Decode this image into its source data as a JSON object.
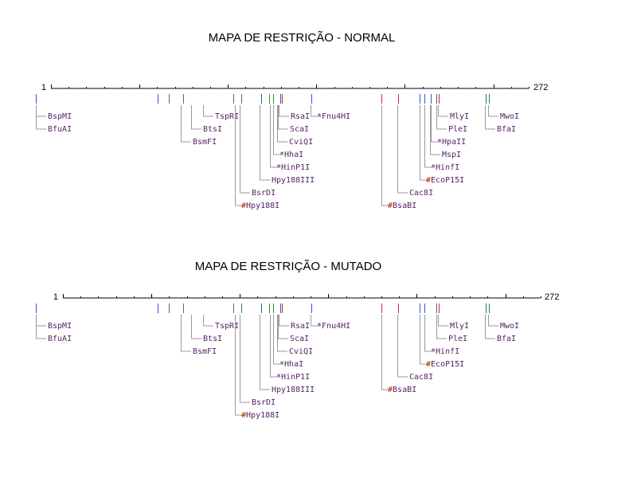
{
  "colors": {
    "site_blue": "#3355cc",
    "site_green": "#338833",
    "site_red": "#dd2222",
    "label_purple": "#552266",
    "mark_red": "#cc3300",
    "leader_gray": "#999999",
    "axis": "#000000"
  },
  "maps": [
    {
      "id": "normal",
      "title": "MAPA DE RESTRIÇÃO - NORMAL",
      "start_label": "1",
      "end_label": "272",
      "sequence_length": 272,
      "sites": [
        {
          "pos": 45,
          "color": "blue"
        },
        {
          "pos": 198,
          "color": "blue"
        },
        {
          "pos": 212,
          "color": "green"
        },
        {
          "pos": 230,
          "color": "green"
        },
        {
          "pos": 293,
          "color": "green"
        },
        {
          "pos": 303,
          "color": "green"
        },
        {
          "pos": 328,
          "color": "blue"
        },
        {
          "pos": 338,
          "color": "green"
        },
        {
          "pos": 343,
          "color": "green"
        },
        {
          "pos": 352,
          "color": "blue"
        },
        {
          "pos": 354,
          "color": "red"
        },
        {
          "pos": 391,
          "color": "blue"
        },
        {
          "pos": 479,
          "color": "red"
        },
        {
          "pos": 500,
          "color": "red"
        },
        {
          "pos": 527,
          "color": "blue"
        },
        {
          "pos": 533,
          "color": "blue"
        },
        {
          "pos": 541,
          "color": "blue"
        },
        {
          "pos": 548,
          "color": "blue"
        },
        {
          "pos": 551,
          "color": "red"
        },
        {
          "pos": 610,
          "color": "blue"
        },
        {
          "pos": 614,
          "color": "green"
        }
      ],
      "labels": [
        {
          "text": "BspMI",
          "prefix": "",
          "row": 0,
          "site": 45
        },
        {
          "text": "BfuAI",
          "prefix": "",
          "row": 1,
          "site": 45
        },
        {
          "text": "TspRI",
          "prefix": "",
          "row": 0,
          "site": 255
        },
        {
          "text": "BtsI",
          "prefix": "",
          "row": 1,
          "site": 240
        },
        {
          "text": "BsmFI",
          "prefix": "",
          "row": 2,
          "site": 227
        },
        {
          "text": "RsaI",
          "prefix": "",
          "row": 0,
          "site": 350
        },
        {
          "text": "ScaI",
          "prefix": "",
          "row": 1,
          "site": 349
        },
        {
          "text": "CviQI",
          "prefix": "",
          "row": 2,
          "site": 348
        },
        {
          "text": "HhaI",
          "prefix": "*",
          "row": 3,
          "site": 343
        },
        {
          "text": "HinP1I",
          "prefix": "*",
          "row": 4,
          "site": 339
        },
        {
          "text": "Hpy188III",
          "prefix": "",
          "row": 5,
          "site": 326
        },
        {
          "text": "BsrDI",
          "prefix": "",
          "row": 6,
          "site": 301
        },
        {
          "text": "Hpy188I",
          "prefix": "#",
          "row": 7,
          "site": 295
        },
        {
          "text": "Fnu4HI",
          "prefix": "*",
          "row": 0,
          "site": 390
        },
        {
          "text": "Cac8I",
          "prefix": "",
          "row": 6,
          "site": 499
        },
        {
          "text": "BsaBI",
          "prefix": "#",
          "row": 7,
          "site": 479
        },
        {
          "text": "MlyI",
          "prefix": "",
          "row": 0,
          "site": 550
        },
        {
          "text": "PleI",
          "prefix": "",
          "row": 1,
          "site": 548
        },
        {
          "text": "HpaII",
          "prefix": "*",
          "row": 2,
          "site": 541
        },
        {
          "text": "MspI",
          "prefix": "",
          "row": 3,
          "site": 540
        },
        {
          "text": "HinfI",
          "prefix": "*",
          "row": 4,
          "site": 533
        },
        {
          "text": "EcoP15I",
          "prefix": "#",
          "row": 5,
          "site": 527
        },
        {
          "text": "MwoI",
          "prefix": "",
          "row": 0,
          "site": 613
        },
        {
          "text": "BfaI",
          "prefix": "",
          "row": 1,
          "site": 609
        }
      ]
    },
    {
      "id": "mutado",
      "title": "MAPA DE RESTRIÇÃO - MUTADO",
      "start_label": "1",
      "end_label": "272",
      "sequence_length": 272,
      "sites": [
        {
          "pos": 45,
          "color": "blue"
        },
        {
          "pos": 198,
          "color": "blue"
        },
        {
          "pos": 212,
          "color": "green"
        },
        {
          "pos": 230,
          "color": "green"
        },
        {
          "pos": 293,
          "color": "green"
        },
        {
          "pos": 303,
          "color": "green"
        },
        {
          "pos": 328,
          "color": "blue"
        },
        {
          "pos": 338,
          "color": "green"
        },
        {
          "pos": 343,
          "color": "green"
        },
        {
          "pos": 352,
          "color": "blue"
        },
        {
          "pos": 354,
          "color": "red"
        },
        {
          "pos": 391,
          "color": "blue"
        },
        {
          "pos": 479,
          "color": "red"
        },
        {
          "pos": 500,
          "color": "red"
        },
        {
          "pos": 527,
          "color": "blue"
        },
        {
          "pos": 533,
          "color": "blue"
        },
        {
          "pos": 548,
          "color": "blue"
        },
        {
          "pos": 551,
          "color": "red"
        },
        {
          "pos": 610,
          "color": "blue"
        },
        {
          "pos": 614,
          "color": "green"
        }
      ],
      "labels": [
        {
          "text": "BspMI",
          "prefix": "",
          "row": 0,
          "site": 45
        },
        {
          "text": "BfuAI",
          "prefix": "",
          "row": 1,
          "site": 45
        },
        {
          "text": "TspRI",
          "prefix": "",
          "row": 0,
          "site": 255
        },
        {
          "text": "BtsI",
          "prefix": "",
          "row": 1,
          "site": 240
        },
        {
          "text": "BsmFI",
          "prefix": "",
          "row": 2,
          "site": 227
        },
        {
          "text": "RsaI",
          "prefix": "",
          "row": 0,
          "site": 350
        },
        {
          "text": "ScaI",
          "prefix": "",
          "row": 1,
          "site": 349
        },
        {
          "text": "CviQI",
          "prefix": "",
          "row": 2,
          "site": 348
        },
        {
          "text": "HhaI",
          "prefix": "*",
          "row": 3,
          "site": 343
        },
        {
          "text": "HinP1I",
          "prefix": "*",
          "row": 4,
          "site": 339
        },
        {
          "text": "Hpy188III",
          "prefix": "",
          "row": 5,
          "site": 326
        },
        {
          "text": "BsrDI",
          "prefix": "",
          "row": 6,
          "site": 301
        },
        {
          "text": "Hpy188I",
          "prefix": "#",
          "row": 7,
          "site": 295
        },
        {
          "text": "Fnu4HI",
          "prefix": "*",
          "row": 0,
          "site": 390
        },
        {
          "text": "Cac8I",
          "prefix": "",
          "row": 4,
          "site": 499
        },
        {
          "text": "BsaBI",
          "prefix": "#",
          "row": 5,
          "site": 479
        },
        {
          "text": "MlyI",
          "prefix": "",
          "row": 0,
          "site": 550
        },
        {
          "text": "PleI",
          "prefix": "",
          "row": 1,
          "site": 548
        },
        {
          "text": "HinfI",
          "prefix": "*",
          "row": 2,
          "site": 533
        },
        {
          "text": "EcoP15I",
          "prefix": "#",
          "row": 3,
          "site": 527
        },
        {
          "text": "MwoI",
          "prefix": "",
          "row": 0,
          "site": 613
        },
        {
          "text": "BfaI",
          "prefix": "",
          "row": 1,
          "site": 609
        }
      ]
    }
  ]
}
